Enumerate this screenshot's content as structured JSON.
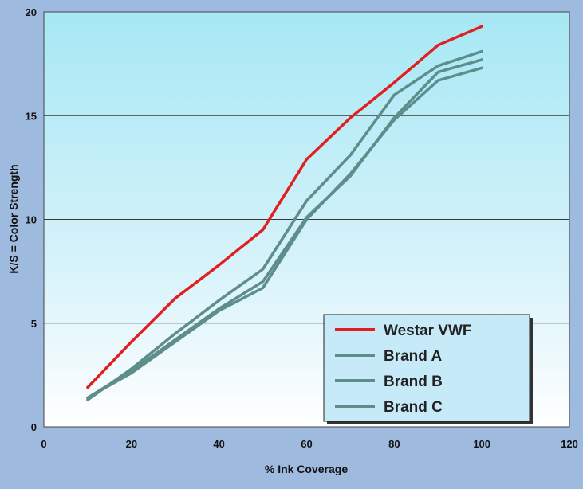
{
  "chart_data": {
    "type": "line",
    "xlabel": "% Ink Coverage",
    "ylabel": "K/S = Color Strength",
    "xlim": [
      0,
      120
    ],
    "ylim": [
      0,
      20
    ],
    "x_ticks": [
      "0",
      "20",
      "40",
      "60",
      "80",
      "100",
      "120"
    ],
    "y_ticks": [
      "0",
      "5",
      "10",
      "15",
      "20"
    ],
    "grid": "horizontal",
    "legend_position": "bottom-right",
    "x": [
      10,
      20,
      30,
      40,
      50,
      60,
      70,
      80,
      90,
      100
    ],
    "series": [
      {
        "name": "Westar VWF",
        "color": "#e02020",
        "values": [
          1.9,
          4.1,
          6.2,
          7.8,
          9.5,
          12.9,
          14.9,
          16.6,
          18.4,
          19.3
        ]
      },
      {
        "name": "Brand A",
        "color": "#5e8e8c",
        "values": [
          1.3,
          2.8,
          4.5,
          6.1,
          7.6,
          10.9,
          13.1,
          16.0,
          17.4,
          18.1
        ]
      },
      {
        "name": "Brand B",
        "color": "#5e8e8c",
        "values": [
          1.4,
          2.7,
          4.2,
          5.7,
          7.0,
          10.1,
          12.1,
          14.9,
          17.1,
          17.7
        ]
      },
      {
        "name": "Brand C",
        "color": "#5e8e8c",
        "values": [
          1.4,
          2.6,
          4.1,
          5.6,
          6.7,
          10.0,
          12.2,
          14.8,
          16.7,
          17.3
        ]
      }
    ]
  }
}
